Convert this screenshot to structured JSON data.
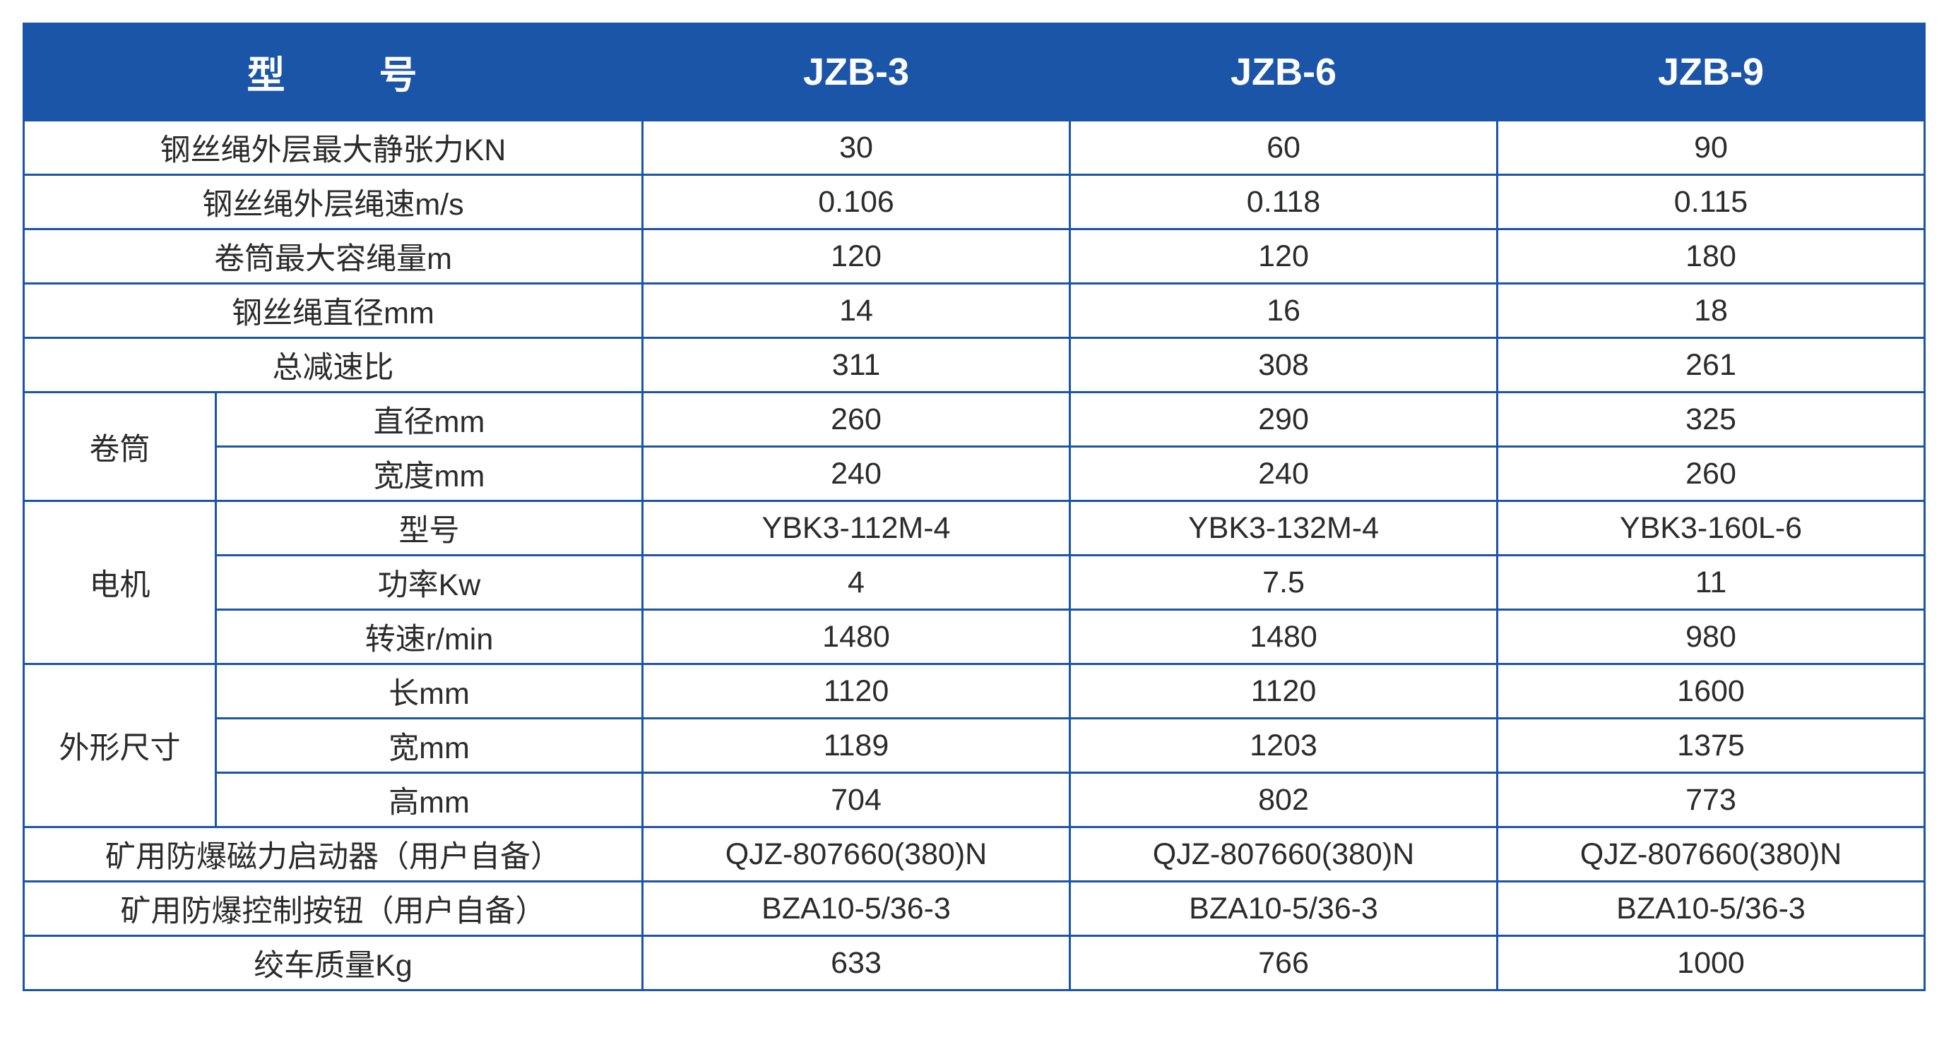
{
  "header": {
    "model_char1": "型",
    "model_char2": "号",
    "models": [
      "JZB-3",
      "JZB-6",
      "JZB-9"
    ]
  },
  "rows": [
    {
      "label": "钢丝绳外层最大静张力KN",
      "values": [
        "30",
        "60",
        "90"
      ]
    },
    {
      "label": "钢丝绳外层绳速m/s",
      "values": [
        "0.106",
        "0.118",
        "0.115"
      ]
    },
    {
      "label": "卷筒最大容绳量m",
      "values": [
        "120",
        "120",
        "180"
      ]
    },
    {
      "label": "钢丝绳直径mm",
      "values": [
        "14",
        "16",
        "18"
      ]
    },
    {
      "label": "总减速比",
      "values": [
        "311",
        "308",
        "261"
      ]
    }
  ],
  "groups": [
    {
      "label": "卷筒",
      "rows": [
        {
          "label": "直径mm",
          "values": [
            "260",
            "290",
            "325"
          ]
        },
        {
          "label": "宽度mm",
          "values": [
            "240",
            "240",
            "260"
          ]
        }
      ]
    },
    {
      "label": "电机",
      "rows": [
        {
          "label": "型号",
          "values": [
            "YBK3-112M-4",
            "YBK3-132M-4",
            "YBK3-160L-6"
          ]
        },
        {
          "label": "功率Kw",
          "values": [
            "4",
            "7.5",
            "11"
          ]
        },
        {
          "label": "转速r/min",
          "values": [
            "1480",
            "1480",
            "980"
          ]
        }
      ]
    },
    {
      "label": "外形尺寸",
      "rows": [
        {
          "label": "长mm",
          "values": [
            "1120",
            "1120",
            "1600"
          ]
        },
        {
          "label": "宽mm",
          "values": [
            "1189",
            "1203",
            "1375"
          ]
        },
        {
          "label": "高mm",
          "values": [
            "704",
            "802",
            "773"
          ]
        }
      ]
    }
  ],
  "footer_rows": [
    {
      "label": "矿用防爆磁力启动器（用户自备）",
      "values": [
        "QJZ-807660(380)N",
        "QJZ-807660(380)N",
        "QJZ-807660(380)N"
      ]
    },
    {
      "label": "矿用防爆控制按钮（用户自备）",
      "values": [
        "BZA10-5/36-3",
        "BZA10-5/36-3",
        "BZA10-5/36-3"
      ]
    },
    {
      "label": "绞车质量Kg",
      "values": [
        "633",
        "766",
        "1000"
      ]
    }
  ],
  "colors": {
    "header_bg": "#1b55a8",
    "header_text": "#ffffff",
    "border": "#1b55a8",
    "body_text": "#2b2b2b"
  }
}
